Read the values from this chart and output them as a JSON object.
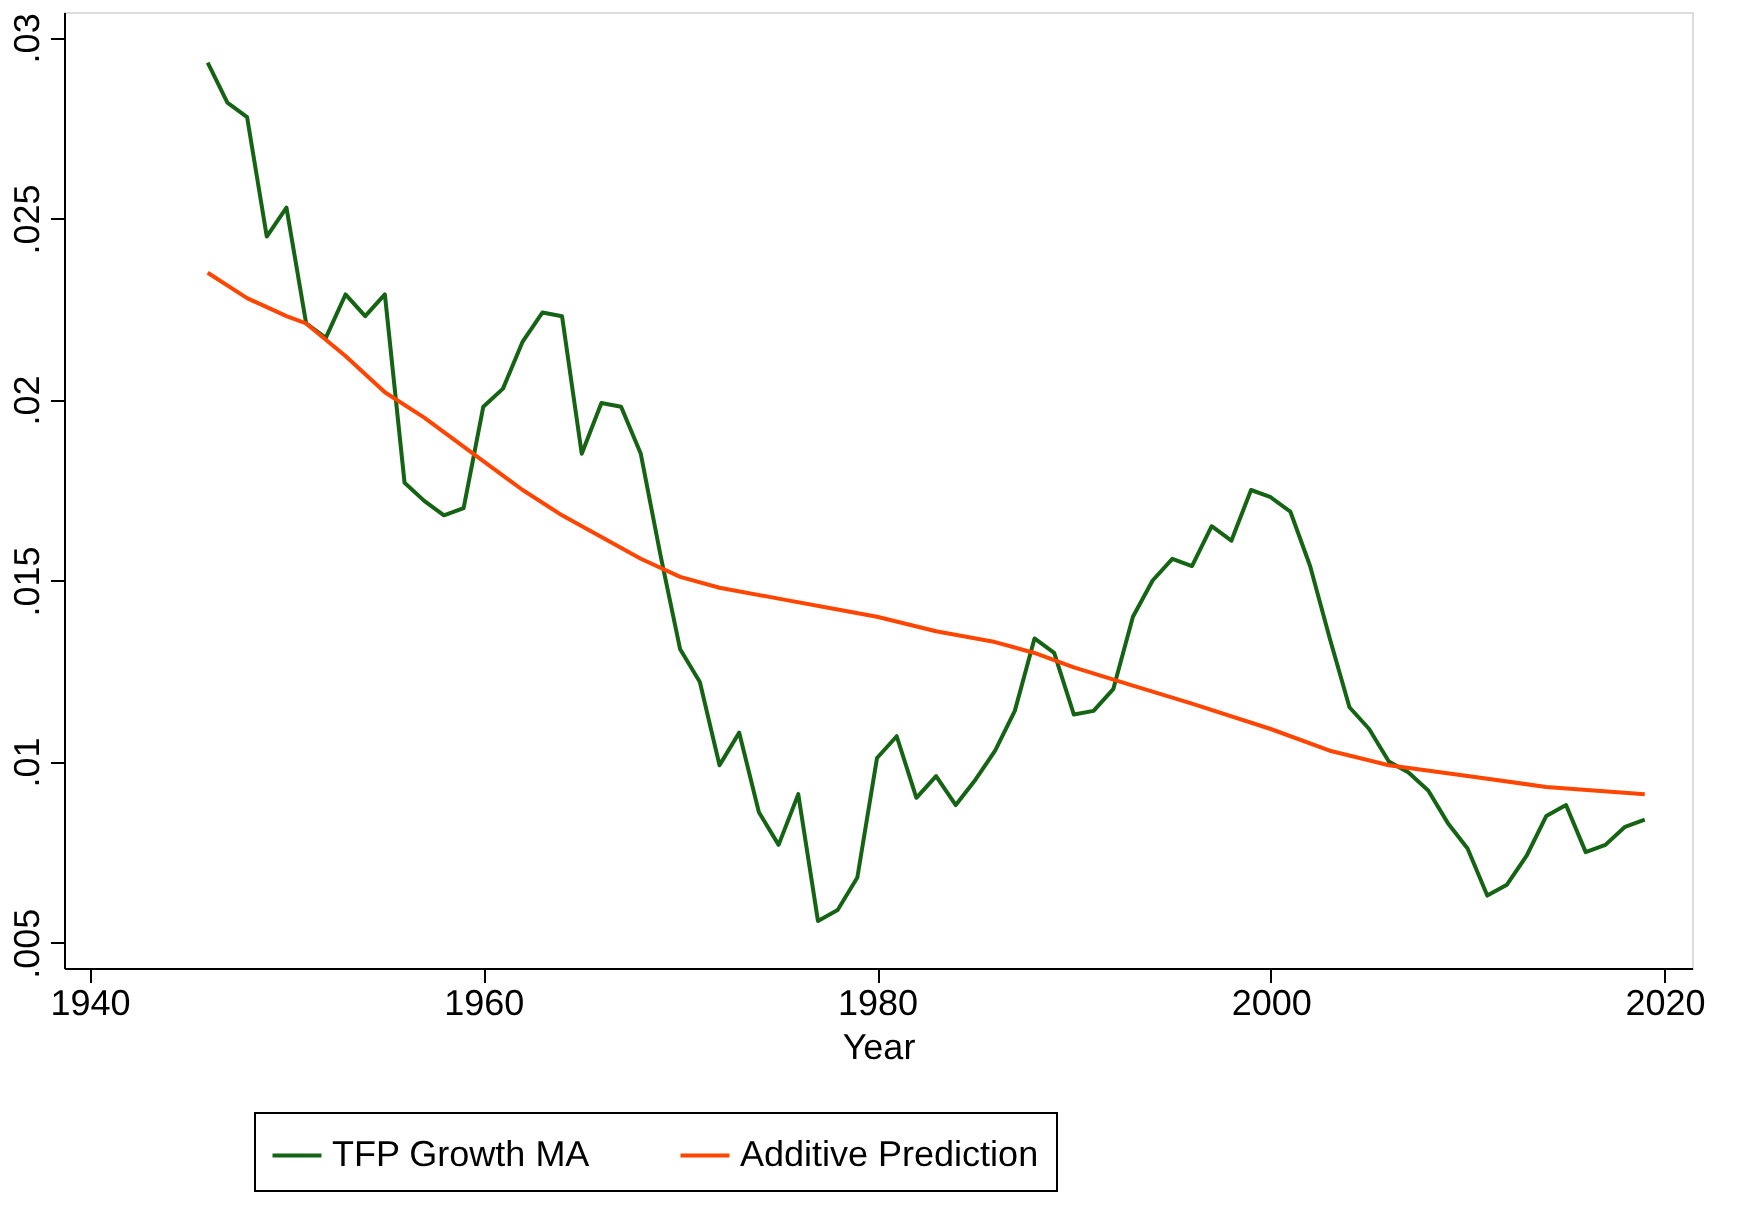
{
  "chart_data": {
    "type": "line",
    "xlabel": "Year",
    "x": [
      1946,
      1947,
      1948,
      1949,
      1950,
      1951,
      1952,
      1953,
      1954,
      1955,
      1956,
      1957,
      1958,
      1959,
      1960,
      1961,
      1962,
      1963,
      1964,
      1965,
      1966,
      1967,
      1968,
      1969,
      1970,
      1971,
      1972,
      1973,
      1974,
      1975,
      1976,
      1977,
      1978,
      1979,
      1980,
      1981,
      1982,
      1983,
      1984,
      1985,
      1986,
      1987,
      1988,
      1989,
      1990,
      1991,
      1992,
      1993,
      1994,
      1995,
      1996,
      1997,
      1998,
      1999,
      2000,
      2001,
      2002,
      2003,
      2004,
      2005,
      2006,
      2007,
      2008,
      2009,
      2010,
      2011,
      2012,
      2013,
      2014,
      2015,
      2016,
      2017,
      2018,
      2019
    ],
    "series": [
      {
        "name": "TFP Growth MA",
        "color": "#146414",
        "values": [
          0.0293,
          0.0282,
          0.0278,
          0.0245,
          0.0253,
          0.0221,
          0.0217,
          0.0229,
          0.0223,
          0.0229,
          0.0177,
          0.0172,
          0.0168,
          0.017,
          0.0198,
          0.0203,
          0.0216,
          0.0224,
          0.0223,
          0.0185,
          0.0199,
          0.0198,
          0.0185,
          0.0157,
          0.0131,
          0.0122,
          0.0099,
          0.0108,
          0.0086,
          0.0077,
          0.0091,
          0.0056,
          0.0059,
          0.0068,
          0.0101,
          0.0107,
          0.009,
          0.0096,
          0.0088,
          0.0095,
          0.0103,
          0.0114,
          0.0134,
          0.013,
          0.0113,
          0.0114,
          0.012,
          0.014,
          0.015,
          0.0156,
          0.0154,
          0.0165,
          0.0161,
          0.0175,
          0.0173,
          0.0169,
          0.0154,
          0.0134,
          0.0115,
          0.0109,
          0.01,
          0.0097,
          0.0092,
          0.0083,
          0.0076,
          0.0063,
          0.0066,
          0.0074,
          0.0085,
          0.0088,
          0.0075,
          0.0077,
          0.0082,
          0.0084
        ]
      },
      {
        "name": "Additive Prediction",
        "color": "#ff4500",
        "x": [
          1946,
          1948,
          1950,
          1951,
          1953,
          1955,
          1957,
          1960,
          1962,
          1964,
          1966,
          1968,
          1970,
          1972,
          1975,
          1978,
          1980,
          1983,
          1986,
          1988,
          1990,
          1993,
          1996,
          2000,
          2003,
          2006,
          2010,
          2014,
          2019
        ],
        "values": [
          0.0235,
          0.0228,
          0.0223,
          0.0221,
          0.0212,
          0.0202,
          0.0195,
          0.0183,
          0.0175,
          0.0168,
          0.0162,
          0.0156,
          0.0151,
          0.0148,
          0.0145,
          0.0142,
          0.014,
          0.0136,
          0.0133,
          0.013,
          0.0126,
          0.0121,
          0.0116,
          0.0109,
          0.0103,
          0.0099,
          0.0096,
          0.0093,
          0.0091
        ]
      }
    ],
    "xlim": [
      1938.7,
      2021.4
    ],
    "xticks": [
      1940,
      1960,
      1980,
      2000,
      2020
    ],
    "ylim": [
      0.0043,
      0.0307
    ],
    "yticks": [
      {
        "value": 0.005,
        "label": ".005"
      },
      {
        "value": 0.01,
        "label": ".01"
      },
      {
        "value": 0.015,
        "label": ".015"
      },
      {
        "value": 0.02,
        "label": ".02"
      },
      {
        "value": 0.025,
        "label": ".025"
      },
      {
        "value": 0.03,
        "label": ".03"
      }
    ],
    "grid": false,
    "legend": "bottom",
    "marker": "none",
    "line_style": "solid"
  }
}
